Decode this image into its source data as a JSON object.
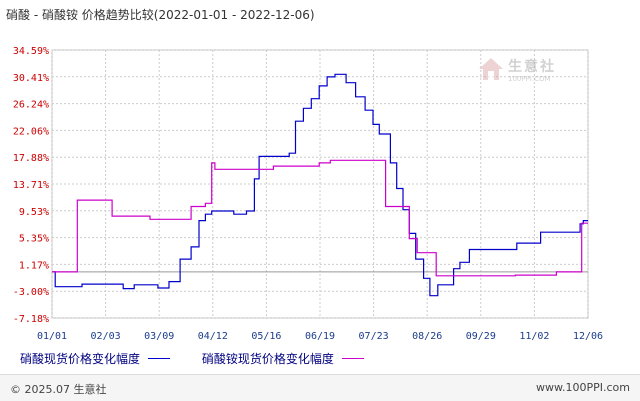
{
  "title": "硝酸 - 硝酸铵 价格趋势比较(2022-01-01 - 2022-12-06)",
  "watermark": {
    "name": "生意社",
    "url": "100PPI.COM"
  },
  "footer": {
    "copyright": "© 2025.07 生意社",
    "url": "www.100PPI.com"
  },
  "colors": {
    "series1": "#0000cc",
    "series2": "#cc00cc",
    "axis_text": "#cc0000",
    "xaxis_text": "#1a3c8c",
    "grid": "#cccccc",
    "zero_line": "#999999"
  },
  "chart_data": {
    "type": "line",
    "y_ticks": [
      "34.59%",
      "30.41%",
      "26.24%",
      "22.06%",
      "17.88%",
      "13.71%",
      "9.53%",
      "5.35%",
      "1.17%",
      "-3.00%",
      "-7.18%"
    ],
    "x_ticks": [
      "01/01",
      "02/03",
      "03/09",
      "04/12",
      "05/16",
      "06/19",
      "07/23",
      "08/26",
      "09/29",
      "11/02",
      "12/06"
    ],
    "ylim": [
      -7.18,
      34.59
    ],
    "xlim": [
      "2022-01-01",
      "2022-12-06"
    ],
    "grid": true,
    "series": [
      {
        "name": "硝酸现货价格变化幅度",
        "color": "#0000cc",
        "points": [
          [
            "2022-01-01",
            0.0
          ],
          [
            "2022-01-03",
            0.0
          ],
          [
            "2022-01-03",
            -2.3
          ],
          [
            "2022-01-20",
            -2.3
          ],
          [
            "2022-01-20",
            -1.9
          ],
          [
            "2022-02-15",
            -1.9
          ],
          [
            "2022-02-15",
            -2.6
          ],
          [
            "2022-02-22",
            -2.6
          ],
          [
            "2022-02-22",
            -2.0
          ],
          [
            "2022-03-09",
            -2.0
          ],
          [
            "2022-03-09",
            -2.5
          ],
          [
            "2022-03-16",
            -2.5
          ],
          [
            "2022-03-16",
            -1.5
          ],
          [
            "2022-03-23",
            -1.5
          ],
          [
            "2022-03-23",
            2.0
          ],
          [
            "2022-03-30",
            2.0
          ],
          [
            "2022-03-30",
            3.9
          ],
          [
            "2022-04-04",
            3.9
          ],
          [
            "2022-04-04",
            8.0
          ],
          [
            "2022-04-08",
            8.0
          ],
          [
            "2022-04-08",
            9.0
          ],
          [
            "2022-04-12",
            9.0
          ],
          [
            "2022-04-12",
            9.5
          ],
          [
            "2022-04-26",
            9.5
          ],
          [
            "2022-04-26",
            9.0
          ],
          [
            "2022-05-04",
            9.0
          ],
          [
            "2022-05-04",
            9.5
          ],
          [
            "2022-05-09",
            9.5
          ],
          [
            "2022-05-09",
            14.5
          ],
          [
            "2022-05-12",
            14.5
          ],
          [
            "2022-05-12",
            18.0
          ],
          [
            "2022-05-31",
            18.0
          ],
          [
            "2022-05-31",
            18.5
          ],
          [
            "2022-06-04",
            18.5
          ],
          [
            "2022-06-04",
            23.5
          ],
          [
            "2022-06-09",
            23.5
          ],
          [
            "2022-06-09",
            25.5
          ],
          [
            "2022-06-14",
            25.5
          ],
          [
            "2022-06-14",
            27.0
          ],
          [
            "2022-06-19",
            27.0
          ],
          [
            "2022-06-19",
            29.0
          ],
          [
            "2022-06-24",
            29.0
          ],
          [
            "2022-06-24",
            30.4
          ],
          [
            "2022-06-29",
            30.4
          ],
          [
            "2022-06-29",
            30.8
          ],
          [
            "2022-07-06",
            30.8
          ],
          [
            "2022-07-06",
            29.5
          ],
          [
            "2022-07-12",
            29.5
          ],
          [
            "2022-07-12",
            27.3
          ],
          [
            "2022-07-18",
            27.3
          ],
          [
            "2022-07-18",
            25.2
          ],
          [
            "2022-07-23",
            25.2
          ],
          [
            "2022-07-23",
            23.0
          ],
          [
            "2022-07-27",
            23.0
          ],
          [
            "2022-07-27",
            21.5
          ],
          [
            "2022-08-03",
            21.5
          ],
          [
            "2022-08-03",
            17.0
          ],
          [
            "2022-08-07",
            17.0
          ],
          [
            "2022-08-07",
            13.0
          ],
          [
            "2022-08-11",
            13.0
          ],
          [
            "2022-08-11",
            9.7
          ],
          [
            "2022-08-15",
            9.7
          ],
          [
            "2022-08-15",
            6.0
          ],
          [
            "2022-08-19",
            6.0
          ],
          [
            "2022-08-19",
            2.0
          ],
          [
            "2022-08-24",
            2.0
          ],
          [
            "2022-08-24",
            -1.0
          ],
          [
            "2022-08-28",
            -1.0
          ],
          [
            "2022-08-28",
            -3.7
          ],
          [
            "2022-09-02",
            -3.7
          ],
          [
            "2022-09-02",
            -2.0
          ],
          [
            "2022-09-12",
            -2.0
          ],
          [
            "2022-09-12",
            0.5
          ],
          [
            "2022-09-16",
            0.5
          ],
          [
            "2022-09-16",
            1.5
          ],
          [
            "2022-09-22",
            1.5
          ],
          [
            "2022-09-22",
            3.5
          ],
          [
            "2022-10-22",
            3.5
          ],
          [
            "2022-10-22",
            4.5
          ],
          [
            "2022-11-06",
            4.5
          ],
          [
            "2022-11-06",
            6.2
          ],
          [
            "2022-12-01",
            6.2
          ],
          [
            "2022-12-01",
            7.5
          ],
          [
            "2022-12-03",
            7.5
          ],
          [
            "2022-12-03",
            8.0
          ],
          [
            "2022-12-06",
            8.0
          ]
        ]
      },
      {
        "name": "硝酸铵现货价格变化幅度",
        "color": "#cc00cc",
        "points": [
          [
            "2022-01-01",
            0.0
          ],
          [
            "2022-01-17",
            0.0
          ],
          [
            "2022-01-17",
            11.2
          ],
          [
            "2022-02-08",
            11.2
          ],
          [
            "2022-02-08",
            8.7
          ],
          [
            "2022-03-04",
            8.7
          ],
          [
            "2022-03-04",
            8.2
          ],
          [
            "2022-03-30",
            8.2
          ],
          [
            "2022-03-30",
            10.2
          ],
          [
            "2022-04-08",
            10.2
          ],
          [
            "2022-04-08",
            10.7
          ],
          [
            "2022-04-12",
            10.7
          ],
          [
            "2022-04-12",
            17.0
          ],
          [
            "2022-04-14",
            17.0
          ],
          [
            "2022-04-14",
            16.0
          ],
          [
            "2022-05-21",
            16.0
          ],
          [
            "2022-05-21",
            16.5
          ],
          [
            "2022-06-19",
            16.5
          ],
          [
            "2022-06-19",
            17.0
          ],
          [
            "2022-06-26",
            17.0
          ],
          [
            "2022-06-26",
            17.4
          ],
          [
            "2022-07-31",
            17.4
          ],
          [
            "2022-07-31",
            10.2
          ],
          [
            "2022-08-15",
            10.2
          ],
          [
            "2022-08-15",
            5.2
          ],
          [
            "2022-08-20",
            5.2
          ],
          [
            "2022-08-20",
            3.0
          ],
          [
            "2022-09-01",
            3.0
          ],
          [
            "2022-09-01",
            -0.6
          ],
          [
            "2022-10-21",
            -0.6
          ],
          [
            "2022-10-21",
            -0.5
          ],
          [
            "2022-11-16",
            -0.5
          ],
          [
            "2022-11-16",
            0.0
          ],
          [
            "2022-12-02",
            0.0
          ],
          [
            "2022-12-02",
            7.6
          ],
          [
            "2022-12-06",
            7.6
          ]
        ]
      }
    ]
  }
}
